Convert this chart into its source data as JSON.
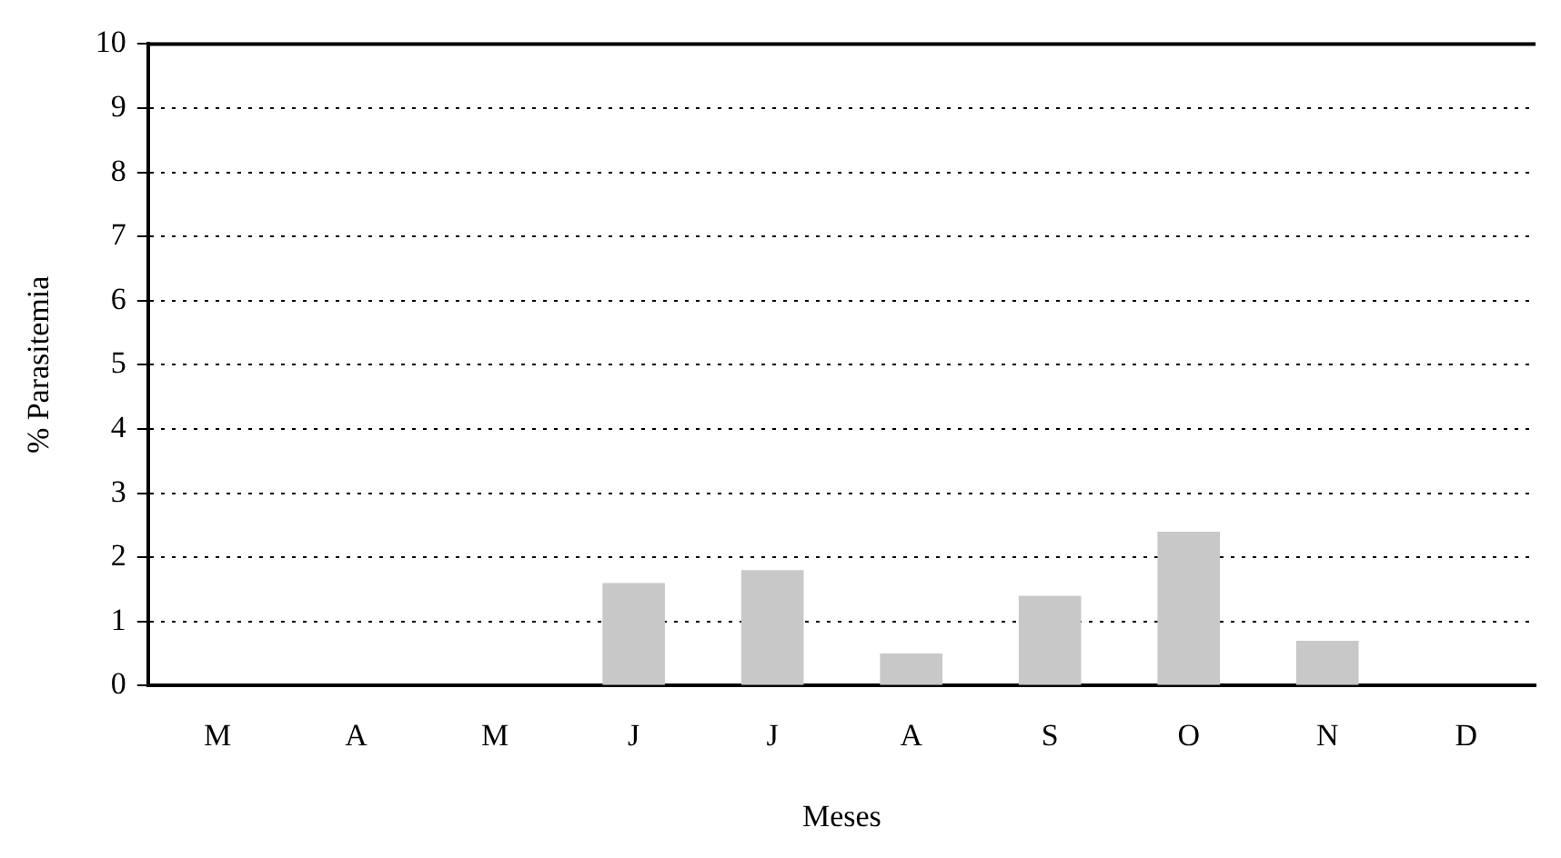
{
  "chart_data": {
    "type": "bar",
    "xlabel": "Meses",
    "ylabel": "% Parasitemia",
    "categories": [
      "M",
      "A",
      "M",
      "J",
      "J",
      "A",
      "S",
      "O",
      "N",
      "D"
    ],
    "values": [
      0,
      0,
      0,
      1.6,
      1.8,
      0.5,
      1.4,
      2.4,
      0.7,
      0
    ],
    "color": "#c8c8c8",
    "ylim": [
      0,
      10
    ],
    "yticks": [
      0,
      1,
      2,
      3,
      4,
      5,
      6,
      7,
      8,
      9,
      10
    ],
    "grid": "y",
    "legend": false
  }
}
